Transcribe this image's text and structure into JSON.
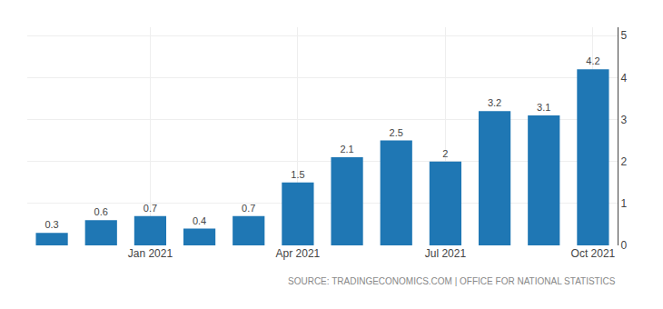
{
  "chart_data": {
    "type": "bar",
    "categories": [
      null,
      null,
      "Jan 2021",
      null,
      null,
      "Apr 2021",
      null,
      null,
      "Jul 2021",
      null,
      null,
      "Oct 2021"
    ],
    "values": [
      0.3,
      0.6,
      0.7,
      0.4,
      0.7,
      1.5,
      2.1,
      2.5,
      2.0,
      3.2,
      3.1,
      4.2
    ],
    "data_labels": true,
    "ylim": [
      0,
      5.2
    ],
    "yticks": [
      0,
      1,
      2,
      3,
      4,
      5
    ],
    "grid": true,
    "annotations": [
      "SOURCE: TRADINGECONOMICS.COM | OFFICE FOR NATIONAL STATISTICS"
    ]
  }
}
